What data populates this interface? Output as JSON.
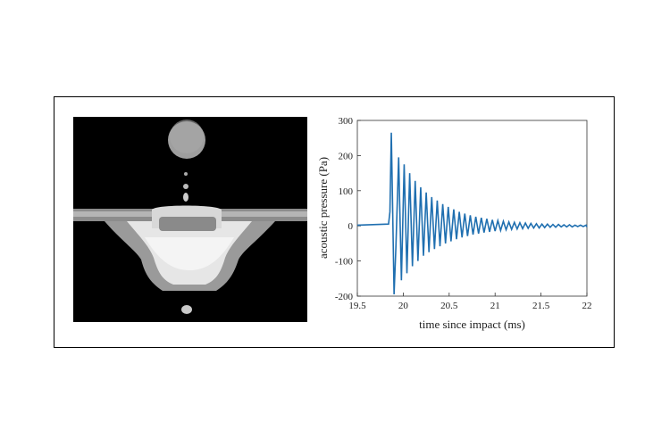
{
  "figure": {
    "photo": {
      "background": "#000000"
    }
  },
  "chart_data": {
    "type": "line",
    "xlabel": "time since impact (ms)",
    "ylabel": "acoustic pressure (Pa)",
    "xlim": [
      19.5,
      22
    ],
    "ylim": [
      -200,
      300
    ],
    "xticks": [
      "19.5",
      "20",
      "20.5",
      "21",
      "21.5",
      "22"
    ],
    "yticks": [
      "300",
      "200",
      "100",
      "0",
      "-100",
      "-200"
    ],
    "grid": false,
    "line_color": "#1f6fb0",
    "series": [
      {
        "x": [
          19.5,
          19.84,
          19.855,
          19.87,
          19.885,
          19.9,
          19.92,
          19.95,
          19.98,
          20.01,
          20.04,
          20.07,
          20.1,
          20.13,
          20.16,
          20.19,
          20.22,
          20.25,
          20.28,
          20.31,
          20.34,
          20.37,
          20.4,
          20.43,
          20.46,
          20.49,
          20.52,
          20.55,
          20.58,
          20.61,
          20.64,
          20.67,
          20.7,
          20.73,
          20.76,
          20.79,
          20.82,
          20.85,
          20.88,
          20.91,
          20.94,
          20.97,
          21.0,
          21.03,
          21.06,
          21.09,
          21.12,
          21.15,
          21.18,
          21.21,
          21.24,
          21.27,
          21.3,
          21.33,
          21.36,
          21.39,
          21.42,
          21.45,
          21.48,
          21.51,
          21.54,
          21.57,
          21.6,
          21.63,
          21.66,
          21.69,
          21.72,
          21.75,
          21.78,
          21.81,
          21.84,
          21.87,
          21.9,
          21.93,
          21.96,
          21.99,
          22.0
        ],
        "y": [
          2,
          5,
          40,
          265,
          40,
          -195,
          -60,
          195,
          -155,
          175,
          -135,
          150,
          -115,
          128,
          -100,
          110,
          -85,
          95,
          -75,
          82,
          -66,
          72,
          -58,
          62,
          -50,
          54,
          -44,
          47,
          -38,
          40,
          -33,
          35,
          -29,
          30,
          -25,
          26,
          -22,
          23,
          -19,
          20,
          -17,
          17,
          -15,
          15,
          -13,
          13,
          -11,
          11,
          -10,
          10,
          -9,
          9,
          -8,
          8,
          -7,
          7,
          -6,
          6,
          -6,
          5,
          -5,
          5,
          -4,
          4,
          -4,
          4,
          -3,
          3,
          -3,
          3,
          -3,
          2,
          -2,
          2,
          -2,
          2,
          -3
        ]
      }
    ]
  }
}
